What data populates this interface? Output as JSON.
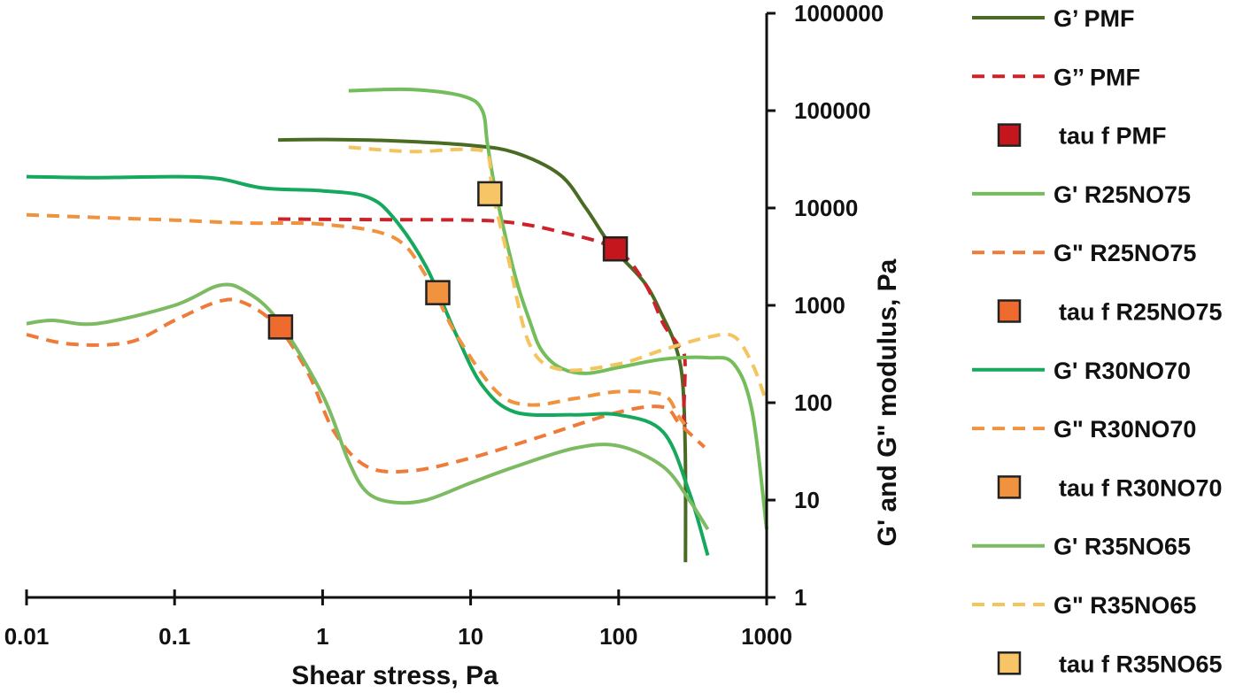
{
  "chart_data": {
    "type": "line",
    "xlabel": "Shear stress, Pa",
    "ylabel": "G' and G\" modulus, Pa",
    "xscale": "log",
    "yscale": "log",
    "xlim": [
      0.01,
      1000
    ],
    "ylim": [
      1,
      1000000
    ],
    "x_ticks": [
      "0.01",
      "0.1",
      "1",
      "10",
      "100",
      "1000"
    ],
    "y_ticks": [
      "1",
      "10",
      "100",
      "1000",
      "10000",
      "100000",
      "1000000"
    ],
    "legend_position": "right",
    "series": [
      {
        "name": "G’ PMF",
        "kind": "line",
        "color": "#4a6b23",
        "dash": false,
        "points": [
          [
            0.5,
            50000
          ],
          [
            1,
            50500
          ],
          [
            3,
            49000
          ],
          [
            10,
            44000
          ],
          [
            20,
            37000
          ],
          [
            40,
            22000
          ],
          [
            60,
            10000
          ],
          [
            90,
            4000
          ],
          [
            150,
            1700
          ],
          [
            200,
            750
          ],
          [
            240,
            400
          ],
          [
            270,
            170
          ],
          [
            282,
            30
          ],
          [
            283,
            2.3
          ]
        ]
      },
      {
        "name": "G’’ PMF",
        "kind": "line",
        "color": "#cc2229",
        "dash": true,
        "points": [
          [
            0.5,
            7700
          ],
          [
            2,
            7600
          ],
          [
            10,
            7500
          ],
          [
            20,
            7000
          ],
          [
            40,
            5700
          ],
          [
            95,
            3800
          ],
          [
            150,
            1700
          ],
          [
            200,
            650
          ],
          [
            250,
            400
          ],
          [
            280,
            280
          ],
          [
            275,
            70
          ],
          [
            285,
            60
          ]
        ]
      },
      {
        "name": "tau f PMF",
        "kind": "marker",
        "color": "#c4161c",
        "points": [
          [
            95,
            3800
          ]
        ]
      },
      {
        "name": "G' R25NO75",
        "kind": "line",
        "color": "#74bd5b",
        "dash": false,
        "points": [
          [
            1.5,
            160000
          ],
          [
            4,
            165000
          ],
          [
            9,
            140000
          ],
          [
            12,
            100000
          ],
          [
            13,
            45000
          ],
          [
            15,
            13000
          ],
          [
            20,
            2000
          ],
          [
            25,
            700
          ],
          [
            30,
            350
          ],
          [
            40,
            230
          ],
          [
            60,
            200
          ],
          [
            100,
            230
          ],
          [
            200,
            280
          ],
          [
            400,
            290
          ],
          [
            600,
            250
          ],
          [
            800,
            80
          ],
          [
            1000,
            5
          ]
        ]
      },
      {
        "name": "G\" R25NO75",
        "kind": "line",
        "color": "#ef7b3a",
        "dash": true,
        "points": [
          [
            0.01,
            500
          ],
          [
            0.02,
            400
          ],
          [
            0.05,
            420
          ],
          [
            0.1,
            700
          ],
          [
            0.2,
            1100
          ],
          [
            0.3,
            1050
          ],
          [
            0.5,
            600
          ],
          [
            0.8,
            200
          ],
          [
            1.2,
            50
          ],
          [
            2,
            22
          ],
          [
            4,
            20
          ],
          [
            10,
            27
          ],
          [
            30,
            45
          ],
          [
            100,
            80
          ],
          [
            200,
            90
          ],
          [
            260,
            60
          ],
          [
            380,
            35
          ]
        ]
      },
      {
        "name": "tau f R25NO75",
        "kind": "marker",
        "color": "#ef6b2d",
        "points": [
          [
            0.52,
            600
          ]
        ]
      },
      {
        "name": "G' R30NO70",
        "kind": "line",
        "color": "#16a85c",
        "dash": false,
        "points": [
          [
            0.01,
            21000
          ],
          [
            0.03,
            20500
          ],
          [
            0.1,
            21000
          ],
          [
            0.2,
            20000
          ],
          [
            0.4,
            16000
          ],
          [
            1,
            15000
          ],
          [
            2,
            13000
          ],
          [
            3,
            8000
          ],
          [
            5,
            2500
          ],
          [
            8,
            500
          ],
          [
            12,
            150
          ],
          [
            20,
            80
          ],
          [
            50,
            75
          ],
          [
            100,
            75
          ],
          [
            200,
            50
          ],
          [
            300,
            12
          ],
          [
            400,
            2.7
          ]
        ]
      },
      {
        "name": "G\" R30NO70",
        "kind": "line",
        "color": "#f0923e",
        "dash": true,
        "points": [
          [
            0.01,
            8500
          ],
          [
            0.03,
            8000
          ],
          [
            0.1,
            7500
          ],
          [
            0.3,
            7000
          ],
          [
            1,
            6800
          ],
          [
            3,
            5000
          ],
          [
            5,
            2000
          ],
          [
            8,
            500
          ],
          [
            15,
            130
          ],
          [
            25,
            95
          ],
          [
            50,
            110
          ],
          [
            100,
            130
          ],
          [
            200,
            120
          ],
          [
            250,
            75
          ],
          [
            280,
            60
          ]
        ]
      },
      {
        "name": "tau f R30NO70",
        "kind": "marker",
        "color": "#f0923e",
        "points": [
          [
            6,
            1350
          ]
        ]
      },
      {
        "name": "G' R35NO65",
        "kind": "line",
        "color": "#7dbb63",
        "dash": false,
        "points": [
          [
            0.01,
            650
          ],
          [
            0.015,
            700
          ],
          [
            0.03,
            650
          ],
          [
            0.1,
            1000
          ],
          [
            0.2,
            1600
          ],
          [
            0.3,
            1400
          ],
          [
            0.5,
            700
          ],
          [
            1,
            120
          ],
          [
            1.5,
            25
          ],
          [
            2,
            12
          ],
          [
            3,
            9.5
          ],
          [
            5,
            10
          ],
          [
            10,
            15
          ],
          [
            20,
            22
          ],
          [
            50,
            34
          ],
          [
            100,
            36
          ],
          [
            200,
            22
          ],
          [
            300,
            10
          ],
          [
            400,
            5
          ]
        ]
      },
      {
        "name": "G\" R35NO65",
        "kind": "line",
        "color": "#f4c45f",
        "dash": true,
        "points": [
          [
            1.5,
            42000
          ],
          [
            4,
            38000
          ],
          [
            9,
            40000
          ],
          [
            13,
            35000
          ],
          [
            14,
            15000
          ],
          [
            18,
            3000
          ],
          [
            25,
            400
          ],
          [
            40,
            220
          ],
          [
            100,
            250
          ],
          [
            200,
            350
          ],
          [
            400,
            470
          ],
          [
            600,
            480
          ],
          [
            800,
            250
          ],
          [
            1000,
            100
          ]
        ]
      },
      {
        "name": "tau f R35NO65",
        "kind": "marker",
        "color": "#f7c566",
        "points": [
          [
            13.5,
            14000
          ]
        ]
      }
    ]
  }
}
